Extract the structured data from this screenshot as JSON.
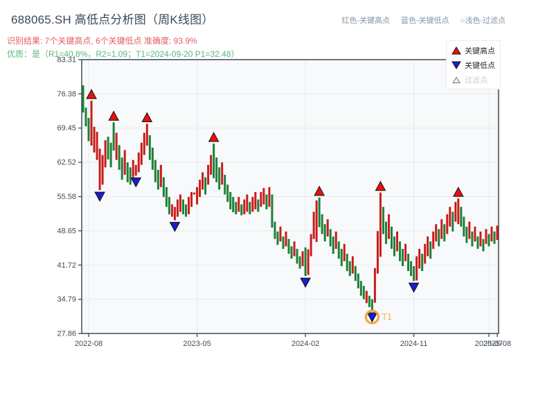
{
  "header": {
    "title": "688065.SH 高低点分析图（周K线图）",
    "result_line": "识别结果: 7个关键高点, 6个关键低点  准确度: 93.9%",
    "quality_line": "优质：是（R1=40.8%，R2=1.09；T1=2024-09-20 P1=32.48）",
    "legend_inline": {
      "high": "红色-关键高点",
      "low": "蓝色-关键低点",
      "filtered": "○浅色-过滤点"
    }
  },
  "legend_box": {
    "high": "关键高点",
    "low": "关键低点",
    "filtered": "过滤点"
  },
  "colors": {
    "up_bar": "#cb1b1b",
    "down_bar": "#1d8038",
    "key_high_marker": "#e8100c",
    "key_low_marker": "#1c1ccd",
    "marker_edge": "#111111",
    "filtered_fill": "#fcefee",
    "filtered_edge": "#777777",
    "t1_ring": "#f2a73d",
    "t1_text": "#f6b050",
    "frame": "#3d4a59",
    "tick_text": "#3e4a57",
    "plot_bg": "#f7f9fa",
    "grid": "#e7ebee"
  },
  "chart_data": {
    "type": "candlestick",
    "subtype": "weekly high-low bars, red=up green=down",
    "title": "688065.SH 高低点分析图（周K线图）",
    "ylim": [
      27.86,
      83.31
    ],
    "y_ticks": [
      27.86,
      34.79,
      41.72,
      48.65,
      55.58,
      62.52,
      69.45,
      76.38,
      83.31
    ],
    "x_ticks": [
      {
        "label": "2022-08",
        "week": 2
      },
      {
        "label": "2023-05",
        "week": 41
      },
      {
        "label": "2024-02",
        "week": 80
      },
      {
        "label": "2024-11",
        "week": 119
      },
      {
        "label": "2025-07",
        "week": 146
      },
      {
        "label": "2025-08",
        "week": 149
      }
    ],
    "weeks": [
      [
        78.1,
        72.6,
        0
      ],
      [
        73.6,
        69.8,
        0
      ],
      [
        71.5,
        66.8,
        0
      ],
      [
        75.0,
        65.9,
        1
      ],
      [
        69.7,
        64.5,
        1
      ],
      [
        68.7,
        63.0,
        1
      ],
      [
        65.3,
        56.9,
        1
      ],
      [
        64.0,
        58.0,
        1
      ],
      [
        67.0,
        61.5,
        1
      ],
      [
        67.7,
        63.1,
        0
      ],
      [
        66.5,
        61.5,
        0
      ],
      [
        70.6,
        64.9,
        0
      ],
      [
        68.5,
        63.0,
        1
      ],
      [
        66.0,
        61.0,
        0
      ],
      [
        63.5,
        59.0,
        0
      ],
      [
        65.0,
        60.0,
        1
      ],
      [
        62.5,
        58.5,
        0
      ],
      [
        61.5,
        58.0,
        0
      ],
      [
        63.0,
        59.5,
        1
      ],
      [
        62.0,
        59.8,
        1
      ],
      [
        64.5,
        60.5,
        1
      ],
      [
        66.5,
        62.0,
        1
      ],
      [
        68.5,
        64.0,
        1
      ],
      [
        70.3,
        65.9,
        1
      ],
      [
        68.0,
        63.0,
        0
      ],
      [
        65.5,
        61.0,
        0
      ],
      [
        63.0,
        58.5,
        0
      ],
      [
        61.0,
        57.0,
        0
      ],
      [
        62.0,
        57.5,
        1
      ],
      [
        59.5,
        55.5,
        0
      ],
      [
        57.5,
        53.5,
        0
      ],
      [
        55.5,
        52.0,
        0
      ],
      [
        54.0,
        51.5,
        1
      ],
      [
        53.5,
        50.8,
        1
      ],
      [
        55.0,
        51.5,
        1
      ],
      [
        56.0,
        52.5,
        1
      ],
      [
        55.0,
        52.0,
        0
      ],
      [
        54.0,
        51.5,
        0
      ],
      [
        55.5,
        52.0,
        1
      ],
      [
        56.5,
        53.5,
        1
      ],
      [
        56.4,
        56.0,
        1
      ],
      [
        57.5,
        54.0,
        1
      ],
      [
        59.0,
        55.5,
        1
      ],
      [
        60.5,
        57.0,
        1
      ],
      [
        59.5,
        56.0,
        0
      ],
      [
        62.0,
        58.0,
        1
      ],
      [
        64.0,
        60.0,
        1
      ],
      [
        66.3,
        59.3,
        0
      ],
      [
        63.5,
        58.5,
        0
      ],
      [
        61.5,
        57.0,
        0
      ],
      [
        62.5,
        58.0,
        1
      ],
      [
        60.0,
        56.0,
        0
      ],
      [
        58.0,
        54.5,
        0
      ],
      [
        56.5,
        53.0,
        0
      ],
      [
        55.5,
        52.4,
        0
      ],
      [
        54.5,
        52.0,
        0
      ],
      [
        55.5,
        52.5,
        1
      ],
      [
        54.0,
        51.8,
        0
      ],
      [
        55.0,
        52.0,
        1
      ],
      [
        56.0,
        52.5,
        1
      ],
      [
        54.5,
        52.0,
        0
      ],
      [
        55.5,
        52.5,
        1
      ],
      [
        56.5,
        53.0,
        1
      ],
      [
        55.0,
        52.5,
        0
      ],
      [
        56.5,
        53.5,
        1
      ],
      [
        57.3,
        54.0,
        1
      ],
      [
        56.0,
        53.0,
        0
      ],
      [
        57.5,
        53.5,
        1
      ],
      [
        56.0,
        49.3,
        0
      ],
      [
        50.5,
        47.0,
        0
      ],
      [
        48.5,
        45.8,
        0
      ],
      [
        49.5,
        46.5,
        1
      ],
      [
        47.5,
        45.0,
        0
      ],
      [
        48.5,
        45.5,
        1
      ],
      [
        47.0,
        44.0,
        0
      ],
      [
        45.5,
        43.0,
        0
      ],
      [
        46.5,
        43.5,
        1
      ],
      [
        45.0,
        42.0,
        0
      ],
      [
        43.5,
        41.0,
        0
      ],
      [
        44.5,
        41.5,
        1
      ],
      [
        45.3,
        39.5,
        0
      ],
      [
        44.9,
        39.7,
        1
      ],
      [
        48.0,
        43.5,
        1
      ],
      [
        52.5,
        47.0,
        1
      ],
      [
        54.8,
        46.4,
        1
      ],
      [
        55.4,
        49.4,
        0
      ],
      [
        52.0,
        48.0,
        0
      ],
      [
        50.0,
        46.5,
        0
      ],
      [
        51.0,
        47.5,
        1
      ],
      [
        49.0,
        45.5,
        0
      ],
      [
        47.5,
        44.0,
        0
      ],
      [
        48.5,
        45.0,
        1
      ],
      [
        46.5,
        43.0,
        0
      ],
      [
        45.0,
        41.5,
        0
      ],
      [
        46.0,
        42.5,
        1
      ],
      [
        44.0,
        40.5,
        0
      ],
      [
        42.5,
        39.5,
        0
      ],
      [
        43.5,
        40.0,
        1
      ],
      [
        41.5,
        38.5,
        0
      ],
      [
        40.0,
        37.0,
        0
      ],
      [
        38.5,
        35.5,
        0
      ],
      [
        37.5,
        34.8,
        0
      ],
      [
        36.5,
        34.0,
        1
      ],
      [
        35.5,
        33.2,
        0
      ],
      [
        34.8,
        32.48,
        0
      ],
      [
        41.1,
        34.1,
        1
      ],
      [
        48.6,
        40.0,
        1
      ],
      [
        56.4,
        43.4,
        1
      ],
      [
        53.5,
        48.0,
        0
      ],
      [
        50.5,
        46.0,
        0
      ],
      [
        52.0,
        47.0,
        1
      ],
      [
        49.5,
        45.0,
        0
      ],
      [
        47.5,
        43.5,
        0
      ],
      [
        48.5,
        44.5,
        1
      ],
      [
        46.5,
        42.5,
        0
      ],
      [
        45.0,
        41.5,
        0
      ],
      [
        46.0,
        42.5,
        1
      ],
      [
        44.0,
        40.5,
        0
      ],
      [
        42.5,
        39.5,
        0
      ],
      [
        41.5,
        38.5,
        0
      ],
      [
        43.5,
        38.6,
        1
      ],
      [
        45.0,
        41.0,
        1
      ],
      [
        44.0,
        40.5,
        0
      ],
      [
        46.0,
        42.0,
        1
      ],
      [
        47.5,
        43.5,
        1
      ],
      [
        46.5,
        43.0,
        0
      ],
      [
        48.5,
        45.0,
        1
      ],
      [
        50.0,
        46.5,
        1
      ],
      [
        49.0,
        45.5,
        0
      ],
      [
        51.0,
        47.0,
        1
      ],
      [
        50.0,
        46.5,
        0
      ],
      [
        52.0,
        48.0,
        1
      ],
      [
        53.5,
        49.5,
        1
      ],
      [
        52.5,
        48.5,
        0
      ],
      [
        54.5,
        50.5,
        1
      ],
      [
        55.2,
        50.0,
        1
      ],
      [
        53.5,
        49.5,
        0
      ],
      [
        51.5,
        47.5,
        0
      ],
      [
        49.5,
        46.2,
        0
      ],
      [
        50.5,
        47.0,
        1
      ],
      [
        48.5,
        45.5,
        0
      ],
      [
        49.5,
        46.5,
        1
      ],
      [
        47.5,
        45.0,
        0
      ],
      [
        48.5,
        45.5,
        1
      ],
      [
        47.0,
        44.5,
        0
      ],
      [
        49.0,
        46.0,
        1
      ],
      [
        48.0,
        45.5,
        0
      ],
      [
        49.5,
        46.5,
        1
      ],
      [
        48.5,
        46.0,
        0
      ],
      [
        49.7,
        46.8,
        1
      ]
    ],
    "key_high_weeks": [
      3,
      11,
      23,
      47,
      85,
      107,
      135
    ],
    "key_low_weeks": [
      6,
      19,
      33,
      80,
      104,
      119
    ],
    "t1_week": 104,
    "t1_label": "T1",
    "t1_price": 32.48,
    "legend_position": "upper right",
    "grid": true
  }
}
